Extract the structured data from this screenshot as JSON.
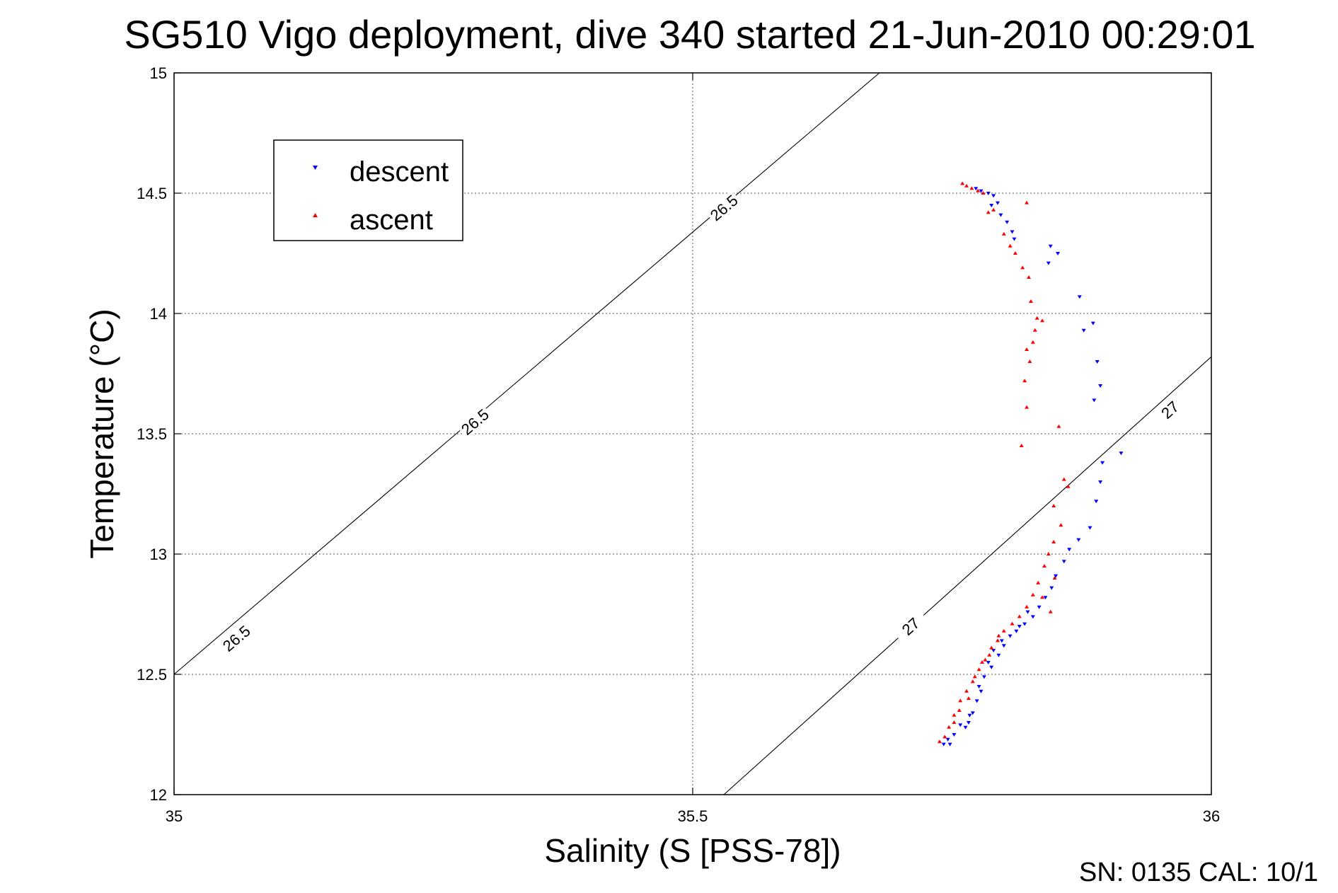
{
  "chart_data": {
    "type": "scatter",
    "title": "SG510 Vigo deployment, dive 340 started 21-Jun-2010 00:29:01",
    "xlabel": "Salinity (S [PSS-78])",
    "ylabel": "Temperature (°C)",
    "xlim": [
      35,
      36
    ],
    "ylim": [
      12,
      15
    ],
    "xticks": [
      "35",
      "35.5",
      "36"
    ],
    "yticks": [
      "12",
      "12.5",
      "13",
      "13.5",
      "14",
      "14.5",
      "15"
    ],
    "grid": true,
    "legend_position": "top-left",
    "footer": "SN: 0135  CAL: 10/1",
    "isopycnals": [
      {
        "label": "26.5",
        "points": [
          [
            35.0,
            12.5
          ],
          [
            35.68,
            15.0
          ]
        ],
        "labels_at": [
          [
            35.06,
            12.65
          ],
          [
            35.29,
            13.55
          ],
          [
            35.53,
            14.44
          ]
        ]
      },
      {
        "label": "27",
        "points": [
          [
            35.53,
            12.0
          ],
          [
            36.0,
            13.82
          ]
        ],
        "labels_at": [
          [
            35.71,
            12.7
          ],
          [
            35.96,
            13.6
          ]
        ]
      }
    ],
    "series": [
      {
        "name": "descent",
        "color": "#0000ff",
        "marker": "triangle-down",
        "points": [
          [
            35.773,
            14.52
          ],
          [
            35.778,
            14.51
          ],
          [
            35.785,
            14.5
          ],
          [
            35.79,
            14.49
          ],
          [
            35.794,
            14.46
          ],
          [
            35.788,
            14.45
          ],
          [
            35.797,
            14.41
          ],
          [
            35.803,
            14.38
          ],
          [
            35.808,
            14.34
          ],
          [
            35.81,
            14.31
          ],
          [
            35.845,
            14.28
          ],
          [
            35.852,
            14.25
          ],
          [
            35.843,
            14.21
          ],
          [
            35.873,
            14.07
          ],
          [
            35.877,
            13.93
          ],
          [
            35.886,
            13.96
          ],
          [
            35.89,
            13.8
          ],
          [
            35.893,
            13.7
          ],
          [
            35.887,
            13.64
          ],
          [
            35.913,
            13.42
          ],
          [
            35.895,
            13.38
          ],
          [
            35.893,
            13.3
          ],
          [
            35.889,
            13.22
          ],
          [
            35.883,
            13.11
          ],
          [
            35.872,
            13.06
          ],
          [
            35.863,
            13.02
          ],
          [
            35.858,
            12.97
          ],
          [
            35.85,
            12.91
          ],
          [
            35.846,
            12.86
          ],
          [
            35.84,
            12.82
          ],
          [
            35.834,
            12.78
          ],
          [
            35.828,
            12.74
          ],
          [
            35.82,
            12.71
          ],
          [
            35.812,
            12.68
          ],
          [
            35.806,
            12.66
          ],
          [
            35.8,
            12.62
          ],
          [
            35.795,
            12.58
          ],
          [
            35.788,
            12.53
          ],
          [
            35.781,
            12.49
          ],
          [
            35.778,
            12.43
          ],
          [
            35.774,
            12.39
          ],
          [
            35.77,
            12.34
          ],
          [
            35.766,
            12.3
          ],
          [
            35.763,
            12.28
          ],
          [
            35.758,
            12.29
          ],
          [
            35.752,
            12.25
          ],
          [
            35.746,
            12.23
          ],
          [
            35.742,
            12.21
          ],
          [
            35.748,
            12.21
          ],
          [
            35.767,
            12.33
          ],
          [
            35.776,
            12.45
          ],
          [
            35.785,
            12.55
          ],
          [
            35.79,
            12.6
          ],
          [
            35.798,
            12.64
          ],
          [
            35.815,
            12.7
          ],
          [
            35.823,
            12.76
          ]
        ]
      },
      {
        "name": "ascent",
        "color": "#ff0000",
        "marker": "triangle-up",
        "points": [
          [
            35.76,
            14.54
          ],
          [
            35.764,
            14.53
          ],
          [
            35.769,
            14.52
          ],
          [
            35.775,
            14.51
          ],
          [
            35.78,
            14.5
          ],
          [
            35.79,
            14.43
          ],
          [
            35.785,
            14.42
          ],
          [
            35.822,
            14.46
          ],
          [
            35.8,
            14.33
          ],
          [
            35.806,
            14.28
          ],
          [
            35.811,
            14.25
          ],
          [
            35.818,
            14.19
          ],
          [
            35.824,
            14.15
          ],
          [
            35.826,
            14.05
          ],
          [
            35.832,
            13.98
          ],
          [
            35.83,
            13.93
          ],
          [
            35.837,
            13.97
          ],
          [
            35.828,
            13.88
          ],
          [
            35.822,
            13.85
          ],
          [
            35.825,
            13.8
          ],
          [
            35.82,
            13.72
          ],
          [
            35.822,
            13.61
          ],
          [
            35.817,
            13.45
          ],
          [
            35.853,
            13.53
          ],
          [
            35.858,
            13.31
          ],
          [
            35.862,
            13.28
          ],
          [
            35.848,
            13.2
          ],
          [
            35.855,
            13.12
          ],
          [
            35.848,
            13.05
          ],
          [
            35.843,
            13.0
          ],
          [
            35.839,
            12.95
          ],
          [
            35.833,
            12.88
          ],
          [
            35.828,
            12.83
          ],
          [
            35.822,
            12.78
          ],
          [
            35.815,
            12.74
          ],
          [
            35.808,
            12.71
          ],
          [
            35.8,
            12.68
          ],
          [
            35.794,
            12.64
          ],
          [
            35.788,
            12.61
          ],
          [
            35.782,
            12.56
          ],
          [
            35.776,
            12.52
          ],
          [
            35.77,
            12.47
          ],
          [
            35.764,
            12.43
          ],
          [
            35.758,
            12.39
          ],
          [
            35.752,
            12.33
          ],
          [
            35.747,
            12.28
          ],
          [
            35.743,
            12.24
          ],
          [
            35.738,
            12.22
          ],
          [
            35.752,
            12.3
          ],
          [
            35.757,
            12.35
          ],
          [
            35.766,
            12.4
          ],
          [
            35.772,
            12.49
          ],
          [
            35.779,
            12.55
          ],
          [
            35.786,
            12.58
          ],
          [
            35.795,
            12.66
          ],
          [
            35.849,
            12.9
          ],
          [
            35.845,
            12.76
          ],
          [
            35.837,
            12.82
          ]
        ]
      }
    ]
  }
}
